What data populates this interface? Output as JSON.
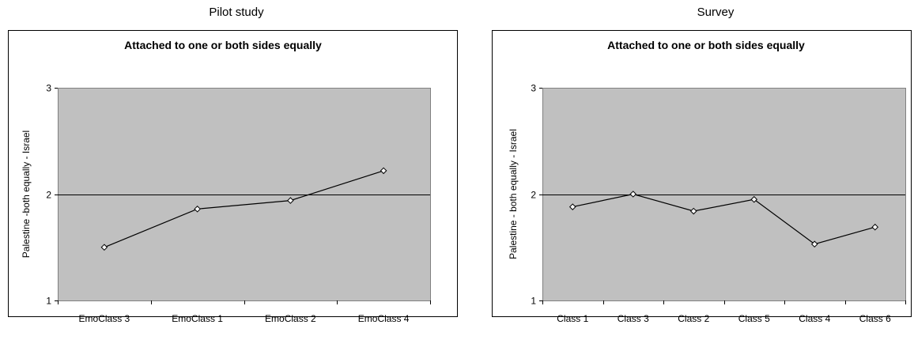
{
  "chart_data": [
    {
      "type": "line",
      "caption": "Pilot study",
      "title": "Attached to one or both sides equally",
      "ylabel": "Palestine -both equally -  Israel",
      "xlabel": "",
      "ylim": [
        1,
        3
      ],
      "yticks": [
        1,
        2,
        3
      ],
      "grid": true,
      "categories": [
        "EmoClass 3",
        "EmoClass 1",
        "EmoClass 2",
        "EmoClass 4"
      ],
      "series": [
        {
          "values": [
            1.5,
            1.86,
            1.94,
            2.22
          ]
        }
      ],
      "colors": {
        "plot_bg": "#c0c0c0",
        "line": "#000000",
        "marker_fill": "#ffffff"
      }
    },
    {
      "type": "line",
      "caption": "Survey",
      "title": "Attached to one or both sides equally",
      "ylabel": "Palestine - both equally -  Israel",
      "xlabel": "",
      "ylim": [
        1,
        3
      ],
      "yticks": [
        1,
        2,
        3
      ],
      "grid": true,
      "categories": [
        "Class 1",
        "Class 3",
        "Class 2",
        "Class 5",
        "Class 4",
        "Class 6"
      ],
      "series": [
        {
          "values": [
            1.88,
            2.0,
            1.84,
            1.95,
            1.53,
            1.69
          ]
        }
      ],
      "colors": {
        "plot_bg": "#c0c0c0",
        "line": "#000000",
        "marker_fill": "#ffffff"
      }
    }
  ]
}
